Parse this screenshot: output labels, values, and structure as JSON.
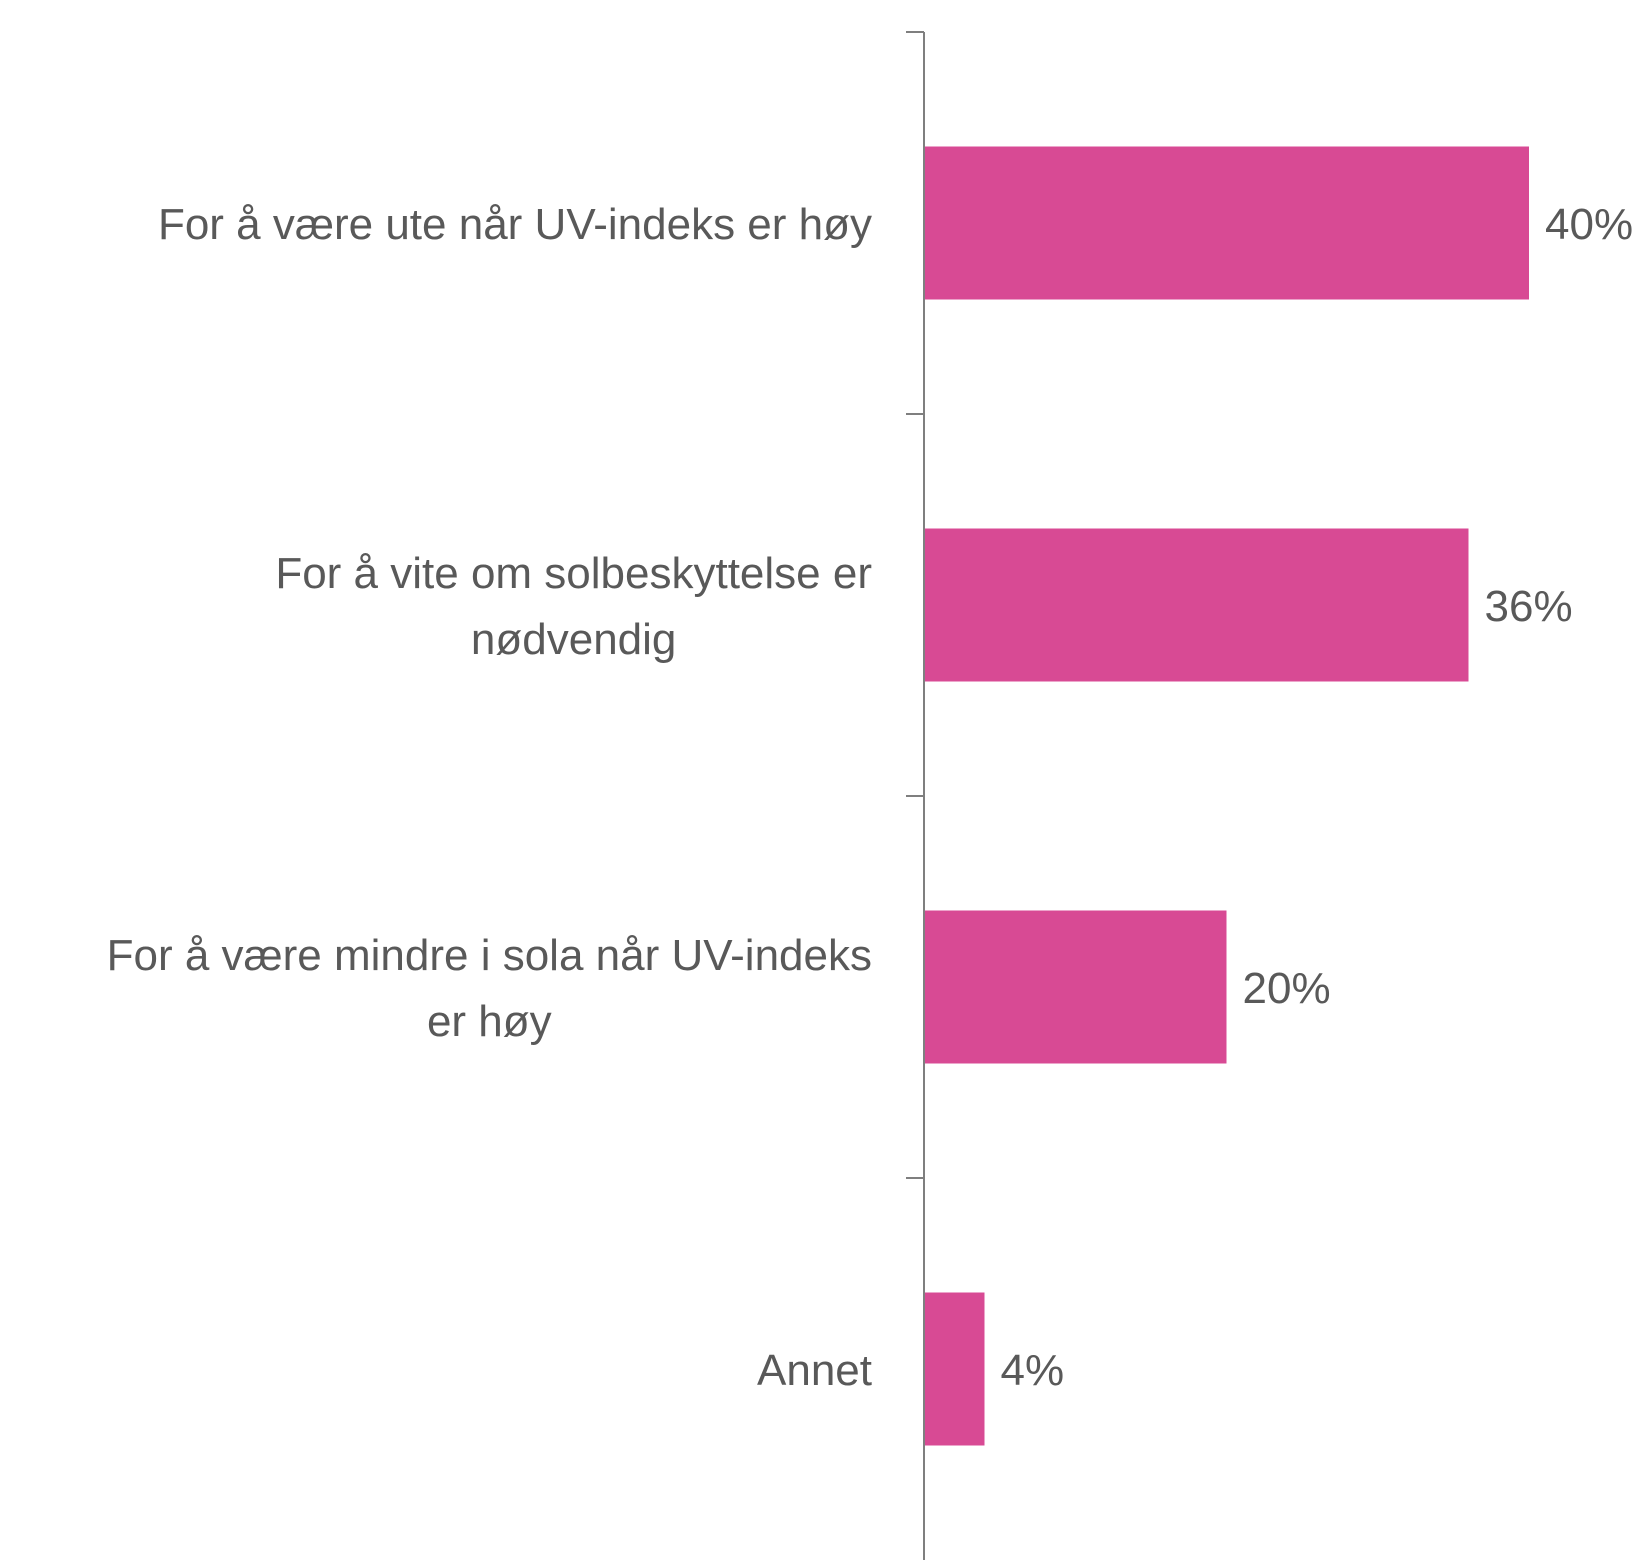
{
  "chart_data": {
    "type": "bar",
    "orientation": "horizontal",
    "categories": [
      [
        "For å være ute når UV-indeks er høy"
      ],
      [
        "For å vite om solbeskyttelse er",
        "nødvendig"
      ],
      [
        "For å være mindre i sola når UV-indeks",
        "er høy"
      ],
      [
        "Annet"
      ]
    ],
    "values": [
      40,
      36,
      20,
      4
    ],
    "value_labels": [
      "40%",
      "36%",
      "20%",
      "4%"
    ],
    "unit": "%",
    "xlim": [
      0,
      46
    ],
    "grid": false,
    "legend": "none",
    "colors": {
      "bar": "#D84A94",
      "axis": "#7F7F7F",
      "text": "#595959"
    }
  }
}
